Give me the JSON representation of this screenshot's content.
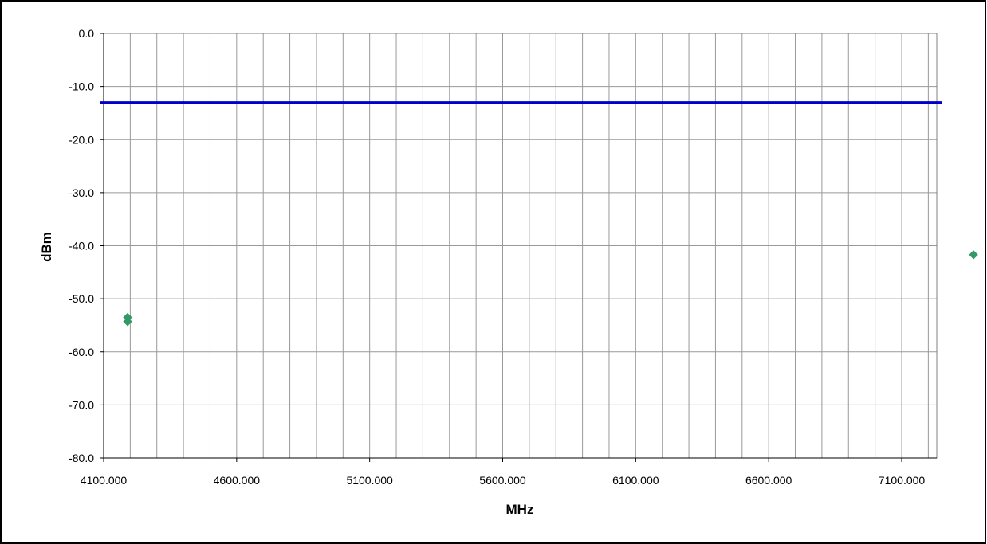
{
  "chart_data": {
    "type": "scatter",
    "title": "",
    "xlabel": "MHz",
    "ylabel": "dBm",
    "xlim": [
      4100,
      7500
    ],
    "ylim": [
      -80,
      0
    ],
    "x_ticks": [
      4100,
      4600,
      5100,
      5600,
      6100,
      6600,
      7100
    ],
    "x_tick_labels": [
      "4100.000",
      "4600.000",
      "5100.000",
      "5600.000",
      "6100.000",
      "6600.000",
      "7100.000"
    ],
    "y_ticks": [
      0,
      -10,
      -20,
      -30,
      -40,
      -50,
      -60,
      -70,
      -80
    ],
    "y_tick_labels": [
      "0.0",
      "-10.0",
      "-20.0",
      "-30.0",
      "-40.0",
      "-50.0",
      "-60.0",
      "-70.0",
      "-80.0"
    ],
    "x_minor_step": 100,
    "grid": true,
    "series": [
      {
        "marker": "diamond",
        "color": "#339966",
        "points": [
          {
            "x": 4190,
            "y": -53.5
          },
          {
            "x": 4190,
            "y": -54.3
          },
          {
            "x": 7370,
            "y": -41.7
          }
        ]
      }
    ],
    "reference_lines": [
      {
        "orientation": "horizontal",
        "y": -13,
        "color": "#0000cc"
      }
    ]
  }
}
